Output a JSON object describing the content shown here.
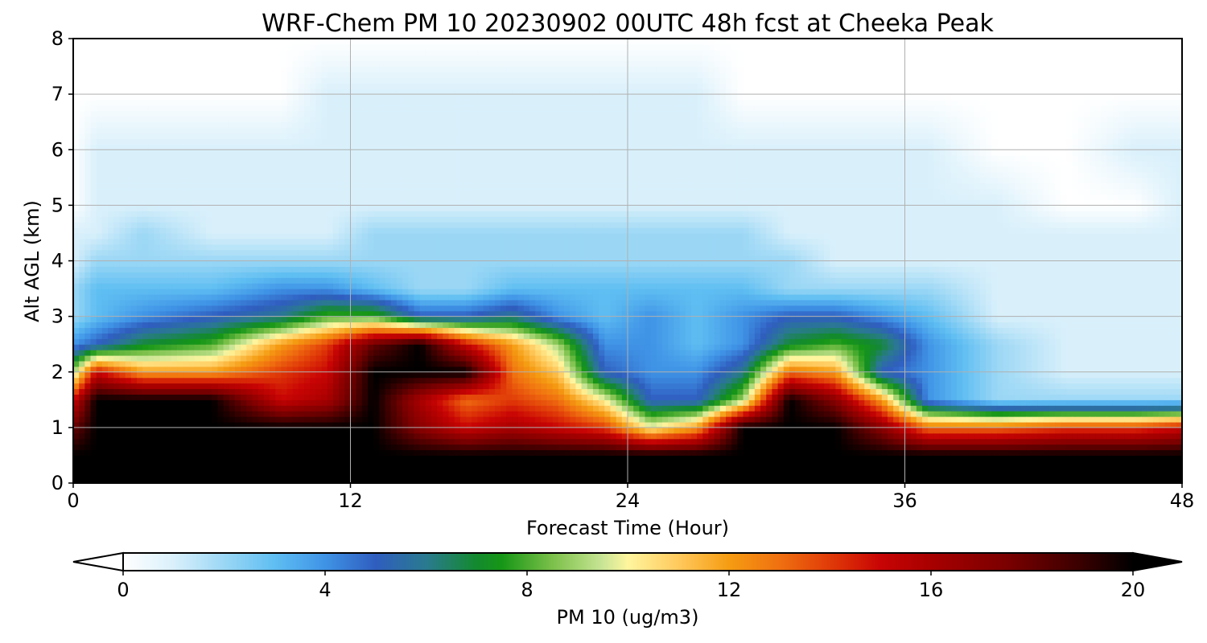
{
  "chart_data": {
    "type": "heatmap",
    "title": "WRF-Chem PM 10  20230902 00UTC 48h fcst at Cheeka Peak",
    "xlabel": "Forecast Time (Hour)",
    "ylabel": "Alt AGL (km)",
    "xlim": [
      0,
      48
    ],
    "ylim": [
      0,
      8
    ],
    "x_ticks": [
      "0",
      "12",
      "24",
      "36",
      "48"
    ],
    "y_ticks": [
      "0",
      "1",
      "2",
      "3",
      "4",
      "5",
      "6",
      "7",
      "8"
    ],
    "grid": true,
    "colorbar": {
      "label": "PM 10  (ug/m3)",
      "min": 0,
      "max": 20,
      "ticks": [
        "0",
        "4",
        "8",
        "12",
        "16",
        "20"
      ],
      "extend": "both",
      "stops": [
        {
          "v": 0,
          "color": "#ffffff"
        },
        {
          "v": 1,
          "color": "#d9f0fb"
        },
        {
          "v": 2,
          "color": "#9bd7f5"
        },
        {
          "v": 3,
          "color": "#5fbef2"
        },
        {
          "v": 4,
          "color": "#3f93e6"
        },
        {
          "v": 5,
          "color": "#2f5dbf"
        },
        {
          "v": 6,
          "color": "#2a7a8f"
        },
        {
          "v": 7,
          "color": "#138a2e"
        },
        {
          "v": 7.5,
          "color": "#169616"
        },
        {
          "v": 8.5,
          "color": "#7bc04a"
        },
        {
          "v": 9.5,
          "color": "#c9e596"
        },
        {
          "v": 10,
          "color": "#fff59e"
        },
        {
          "v": 11,
          "color": "#ffc95c"
        },
        {
          "v": 12,
          "color": "#f59c12"
        },
        {
          "v": 13,
          "color": "#f07010"
        },
        {
          "v": 14,
          "color": "#e03a08"
        },
        {
          "v": 15,
          "color": "#c80404"
        },
        {
          "v": 16,
          "color": "#a80000"
        },
        {
          "v": 17.5,
          "color": "#7a0000"
        },
        {
          "v": 19,
          "color": "#380000"
        },
        {
          "v": 20,
          "color": "#000000"
        }
      ]
    },
    "levels_km": [
      0.0,
      0.5,
      1.0,
      1.5,
      2.0,
      2.5,
      3.0,
      3.5,
      4.0,
      4.5,
      5.0,
      6.0,
      7.0,
      8.0
    ],
    "times_h": [
      0,
      1,
      3,
      6,
      9,
      11,
      13,
      15,
      17,
      19,
      21,
      23,
      25,
      27,
      29,
      31,
      33,
      35,
      37,
      40,
      43,
      46,
      48
    ],
    "values": [
      [
        20,
        20,
        20,
        20,
        20,
        20,
        20,
        20,
        20,
        20,
        20,
        20,
        20,
        20,
        20,
        20,
        20,
        20,
        20,
        20,
        20,
        20,
        20
      ],
      [
        20,
        20,
        20,
        20,
        20,
        20,
        20,
        20,
        20,
        20,
        20,
        20,
        20,
        20,
        20,
        20,
        20,
        20,
        20,
        20,
        20,
        20,
        20
      ],
      [
        18,
        20,
        20,
        20,
        20,
        20,
        20,
        17,
        15,
        16,
        15,
        14,
        10,
        12,
        20,
        20,
        20,
        17,
        13,
        13,
        14,
        14,
        15
      ],
      [
        15,
        20,
        20,
        20,
        15,
        16,
        20,
        16,
        13,
        14,
        13,
        10,
        5,
        5,
        9,
        20,
        17,
        12,
        4,
        2,
        2,
        2,
        2
      ],
      [
        9,
        15,
        12,
        12,
        14,
        15,
        20,
        20,
        20,
        13,
        11,
        5,
        4,
        4,
        6,
        13,
        12,
        5,
        4,
        2,
        1,
        1,
        1
      ],
      [
        4,
        5,
        7,
        8,
        12,
        14,
        18,
        20,
        15,
        12,
        9,
        4,
        4,
        3,
        4,
        7,
        8,
        7,
        4,
        2,
        1,
        1,
        1
      ],
      [
        2,
        3,
        4,
        5,
        6,
        8,
        8,
        5,
        5,
        6,
        4,
        3,
        4,
        3,
        4,
        5,
        5,
        4,
        3,
        1,
        1,
        1,
        1
      ],
      [
        2,
        3,
        3,
        3,
        4,
        4,
        3,
        2,
        2,
        3,
        3,
        3,
        3,
        3,
        3,
        2,
        2,
        2,
        2,
        1,
        1,
        1,
        1
      ],
      [
        1,
        2,
        2,
        2,
        2,
        2,
        2,
        2,
        2,
        2,
        2,
        2,
        2,
        2,
        2,
        2,
        1,
        1,
        1,
        1,
        1,
        1,
        1
      ],
      [
        1,
        1,
        2,
        1,
        1,
        1,
        2,
        2,
        2,
        2,
        2,
        2,
        2,
        2,
        2,
        1,
        1,
        1,
        1,
        1,
        1,
        1,
        1
      ],
      [
        0,
        1,
        1,
        1,
        1,
        1,
        1,
        1,
        1,
        1,
        1,
        1,
        1,
        1,
        1,
        1,
        1,
        1,
        1,
        1,
        0,
        0,
        1
      ],
      [
        0,
        1,
        1,
        1,
        1,
        1,
        1,
        1,
        1,
        1,
        1,
        1,
        1,
        1,
        1,
        1,
        1,
        1,
        1,
        0,
        0,
        1,
        1
      ],
      [
        0,
        0,
        0,
        0,
        0,
        1,
        1,
        1,
        1,
        1,
        1,
        1,
        1,
        1,
        0,
        0,
        0,
        0,
        0,
        0,
        0,
        0,
        0
      ],
      [
        0,
        0,
        0,
        0,
        0,
        0,
        0,
        0,
        0,
        0,
        0,
        0,
        0,
        0,
        0,
        0,
        0,
        0,
        0,
        0,
        0,
        0,
        0
      ]
    ]
  }
}
